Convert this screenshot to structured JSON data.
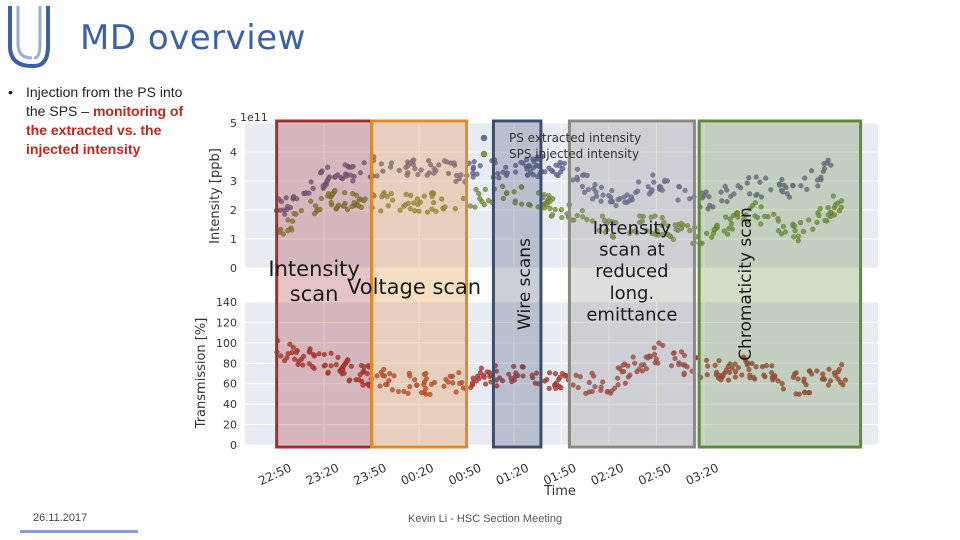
{
  "slide": {
    "title": "MD overview",
    "bullet_main": "Injection from the PS into the SPS –",
    "bullet_highlight": "monitoring of the extracted vs. the injected intensity",
    "footer_date": "26.11.2017",
    "footer_center": "Kevin Li - HSC Section Meeting"
  },
  "colors": {
    "title": "#3b5fa8",
    "highlight": "#c0281d",
    "ps_extracted": "#6a6aa0",
    "sps_injected": "#7c9a2e",
    "transmission": "#c0392b"
  },
  "chart_data": {
    "type": "scatter",
    "top_panel": {
      "ylabel": "Intensity [ppb]",
      "multiplier": "1e11",
      "yticks": [
        "0",
        "1",
        "2",
        "3",
        "4",
        "5"
      ],
      "ylim": [
        0,
        5
      ],
      "legend": [
        "PS extracted intensity",
        "SPS injected intensity"
      ],
      "series": [
        {
          "name": "PS extracted intensity",
          "x": [
            0,
            3,
            6,
            9,
            12,
            15,
            18,
            21,
            24,
            27,
            30,
            33,
            36
          ],
          "y": [
            2.0,
            3.1,
            3.5,
            3.4,
            3.3,
            3.5,
            3.5,
            2.3,
            3.0,
            2.3,
            2.8,
            2.7,
            3.9
          ]
        },
        {
          "name": "SPS injected intensity",
          "x": [
            0,
            3,
            6,
            9,
            12,
            15,
            18,
            21,
            24,
            27,
            30,
            33,
            36
          ],
          "y": [
            1.1,
            2.4,
            2.3,
            2.2,
            2.4,
            2.6,
            2.0,
            1.4,
            1.5,
            1.0,
            2.0,
            1.2,
            2.5
          ]
        }
      ]
    },
    "bottom_panel": {
      "ylabel": "Transmission [%]",
      "yticks": [
        "0",
        "20",
        "40",
        "60",
        "80",
        "100",
        "120",
        "140"
      ],
      "ylim": [
        0,
        140
      ],
      "series": [
        {
          "name": "Transmission",
          "x": [
            0,
            3,
            6,
            9,
            12,
            15,
            18,
            21,
            24,
            27,
            30,
            33,
            36
          ],
          "y": [
            95,
            82,
            66,
            60,
            62,
            72,
            62,
            60,
            90,
            72,
            76,
            60,
            70
          ]
        }
      ]
    },
    "xlabel": "Time",
    "xlim": [
      -2,
      38
    ],
    "xticks": [
      {
        "label": "22:50",
        "x": 0
      },
      {
        "label": "23:20",
        "x": 3
      },
      {
        "label": "23:50",
        "x": 6
      },
      {
        "label": "00:20",
        "x": 9
      },
      {
        "label": "00:50",
        "x": 12
      },
      {
        "label": "01:20",
        "x": 15
      },
      {
        "label": "01:50",
        "x": 18
      },
      {
        "label": "02:20",
        "x": 21
      },
      {
        "label": "02:50",
        "x": 24
      },
      {
        "label": "03:20",
        "x": 27
      }
    ],
    "regions": [
      {
        "name": "intensity-scan",
        "label": "Intensity scan",
        "x0": 0.0,
        "x1": 6.0,
        "color": "#a0302a"
      },
      {
        "name": "voltage-scan",
        "label": "Voltage scan",
        "x0": 6.0,
        "x1": 12.0,
        "color": "#e08a2a"
      },
      {
        "name": "wire-scans",
        "label": "Wire scans",
        "x0": 13.7,
        "x1": 16.7,
        "color": "#3c4f6e"
      },
      {
        "name": "intensity-scan-reduced-emittance",
        "label": "Intensity scan at reduced long. emittance",
        "x0": 18.5,
        "x1": 26.4,
        "color": "#8a8a80"
      },
      {
        "name": "chromaticity-scan",
        "label": "Chromaticity scan",
        "x0": 26.7,
        "x1": 36.9,
        "color": "#5e8a3a"
      }
    ]
  }
}
